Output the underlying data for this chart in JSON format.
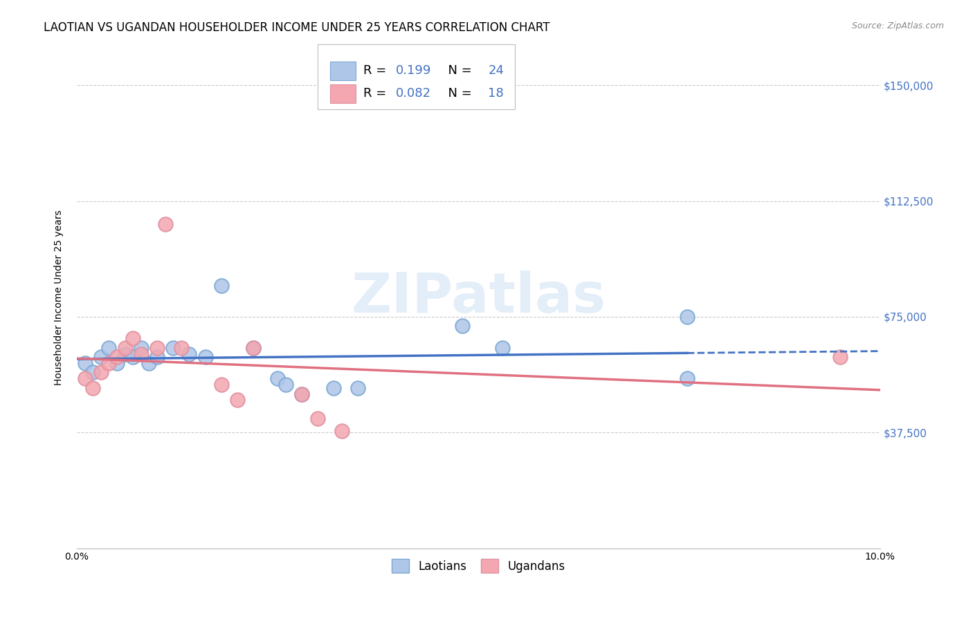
{
  "title": "LAOTIAN VS UGANDAN HOUSEHOLDER INCOME UNDER 25 YEARS CORRELATION CHART",
  "source": "Source: ZipAtlas.com",
  "ylabel": "Householder Income Under 25 years",
  "xlim": [
    0.0,
    0.1
  ],
  "ylim": [
    0,
    162500
  ],
  "yticks": [
    0,
    37500,
    75000,
    112500,
    150000
  ],
  "ytick_labels": [
    "",
    "$37,500",
    "$75,000",
    "$112,500",
    "$150,000"
  ],
  "xticks": [
    0.0,
    0.02,
    0.04,
    0.06,
    0.08,
    0.1
  ],
  "xtick_labels": [
    "0.0%",
    "",
    "",
    "",
    "",
    "10.0%"
  ],
  "laotian_r": 0.199,
  "laotian_n": 24,
  "ugandan_r": 0.082,
  "ugandan_n": 18,
  "laotian_x": [
    0.001,
    0.002,
    0.003,
    0.004,
    0.005,
    0.006,
    0.007,
    0.008,
    0.009,
    0.01,
    0.012,
    0.014,
    0.016,
    0.018,
    0.022,
    0.025,
    0.026,
    0.028,
    0.032,
    0.035,
    0.048,
    0.053,
    0.076,
    0.076
  ],
  "laotian_y": [
    60000,
    57000,
    62000,
    65000,
    60000,
    63000,
    62000,
    65000,
    60000,
    62000,
    65000,
    63000,
    62000,
    85000,
    65000,
    55000,
    53000,
    50000,
    52000,
    52000,
    72000,
    65000,
    75000,
    55000
  ],
  "ugandan_x": [
    0.001,
    0.002,
    0.003,
    0.004,
    0.005,
    0.006,
    0.007,
    0.008,
    0.01,
    0.011,
    0.013,
    0.018,
    0.02,
    0.022,
    0.028,
    0.03,
    0.033,
    0.095
  ],
  "ugandan_y": [
    55000,
    52000,
    57000,
    60000,
    62000,
    65000,
    68000,
    63000,
    65000,
    105000,
    65000,
    53000,
    48000,
    65000,
    50000,
    42000,
    38000,
    62000
  ],
  "laotian_line_color": "#4472c4",
  "ugandan_line_color": "#e07080",
  "laotian_dot_color": "#aec6e8",
  "ugandan_dot_color": "#f4a7b0",
  "laotian_dot_edge": "#7ba7d4",
  "ugandan_dot_edge": "#e090a0",
  "grid_color": "#cccccc",
  "background_color": "#ffffff",
  "watermark_text": "ZIPatlas",
  "title_fontsize": 12,
  "axis_label_fontsize": 10,
  "tick_fontsize": 10,
  "right_tick_color": "#4472c4",
  "source_color": "#888888"
}
